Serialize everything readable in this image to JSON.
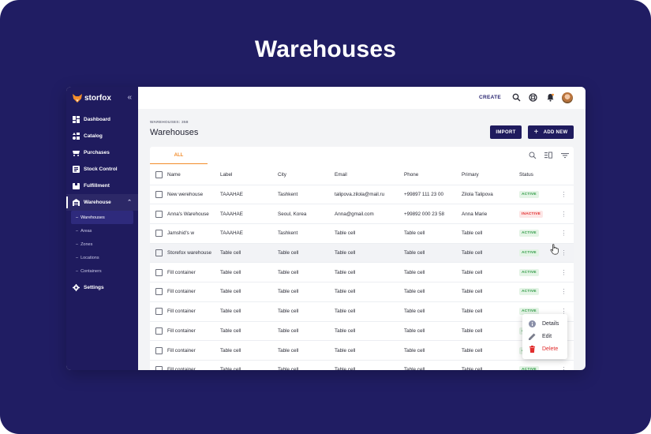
{
  "hero_title": "Warehouses",
  "brand": "storfox",
  "colors": {
    "background": "#201d63",
    "sidebar": "#1f1b5e",
    "accent": "#f28c2a",
    "active_green": "#2f9a45",
    "inactive_red": "#e12d2d"
  },
  "sidebar": {
    "items": [
      {
        "label": "Dashboard",
        "icon": "dashboard-icon"
      },
      {
        "label": "Catalog",
        "icon": "catalog-icon"
      },
      {
        "label": "Purchases",
        "icon": "purchases-icon"
      },
      {
        "label": "Stock Control",
        "icon": "stock-icon"
      },
      {
        "label": "Fulfillment",
        "icon": "fulfillment-icon"
      },
      {
        "label": "Warehouse",
        "icon": "warehouse-icon"
      }
    ],
    "sub_items": [
      "Warehouses",
      "Areas",
      "Zones",
      "Locations",
      "Containers"
    ],
    "settings": "Settings"
  },
  "topbar": {
    "create_label": "CREATE"
  },
  "page": {
    "counter": "WAREHOUSES: 358",
    "title": "Warehouses",
    "import_label": "IMPORT",
    "add_label": "ADD NEW",
    "tab_all": "ALL"
  },
  "table": {
    "columns": [
      "Name",
      "Label",
      "City",
      "Email",
      "Phone",
      "Primary",
      "Status"
    ],
    "rows": [
      [
        "New werehouse",
        "TAAAHAE",
        "Tashkent",
        "talipova.zilola@mail.ru",
        "+99897 111 23 00",
        "Zilola Talipova",
        "ACTIVE"
      ],
      [
        "Anna's Warehouse",
        "TAAAHAE",
        "Seoul, Korea",
        "Anna@gmail.com",
        "+99892 000 23 58",
        "Anna Marie",
        "INACTIVE"
      ],
      [
        "Jamshid's w",
        "TAAAHAE",
        "Tashkent",
        "Table cell",
        "Table cell",
        "Table cell",
        "ACTIVE"
      ],
      [
        "Storefox warehouse",
        "Table cell",
        "Table cell",
        "Table cell",
        "Table cell",
        "Table cell",
        "ACTIVE"
      ],
      [
        "Fill container",
        "Table cell",
        "Table cell",
        "Table cell",
        "Table cell",
        "Table cell",
        "ACTIVE"
      ],
      [
        "Fill container",
        "Table cell",
        "Table cell",
        "Table cell",
        "Table cell",
        "Table cell",
        "ACTIVE"
      ],
      [
        "Fill container",
        "Table cell",
        "Table cell",
        "Table cell",
        "Table cell",
        "Table cell",
        "ACTIVE"
      ],
      [
        "Fill container",
        "Table cell",
        "Table cell",
        "Table cell",
        "Table cell",
        "Table cell",
        "ACTIVE"
      ],
      [
        "Fill container",
        "Table cell",
        "Table cell",
        "Table cell",
        "Table cell",
        "Table cell",
        "ACTIVE"
      ],
      [
        "Fill container",
        "Table cell",
        "Table cell",
        "Table cell",
        "Table cell",
        "Table cell",
        "ACTIVE"
      ]
    ]
  },
  "context_menu": {
    "details": "Details",
    "edit": "Edit",
    "delete": "Delete"
  }
}
